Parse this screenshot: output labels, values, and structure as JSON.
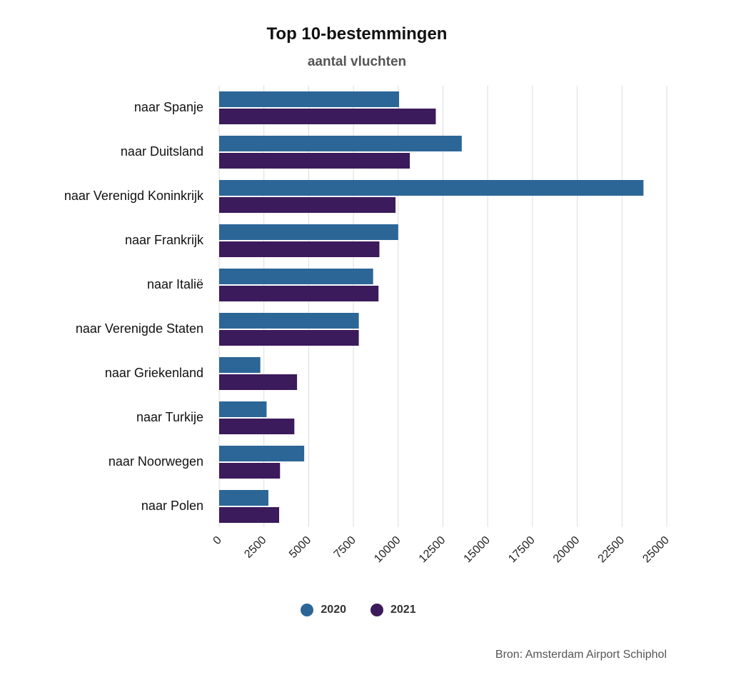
{
  "chart_data": {
    "type": "bar",
    "orientation": "horizontal",
    "title": "Top 10-bestemmingen",
    "subtitle": "aantal vluchten",
    "categories": [
      "naar Spanje",
      "naar Duitsland",
      "naar Verenigd Koninkrijk",
      "naar Frankrijk",
      "naar Italië",
      "naar Verenigde Staten",
      "naar Griekenland",
      "naar Turkije",
      "naar Noorwegen",
      "naar Polen"
    ],
    "series": [
      {
        "name": "2020",
        "color": "#2c6697",
        "values": [
          10050,
          13550,
          23700,
          10000,
          8600,
          7800,
          2300,
          2650,
          4750,
          2750
        ]
      },
      {
        "name": "2021",
        "color": "#3b1b5b",
        "values": [
          12100,
          10650,
          9850,
          8950,
          8900,
          7800,
          4350,
          4200,
          3400,
          3350
        ]
      }
    ],
    "xlim": [
      0,
      25000
    ],
    "xticks": [
      "0",
      "2500",
      "5000",
      "7500",
      "10000",
      "12500",
      "15000",
      "17500",
      "20000",
      "22500",
      "25000"
    ],
    "grid": true,
    "legend_position": "bottom"
  },
  "source": "Bron: Amsterdam Airport Schiphol"
}
